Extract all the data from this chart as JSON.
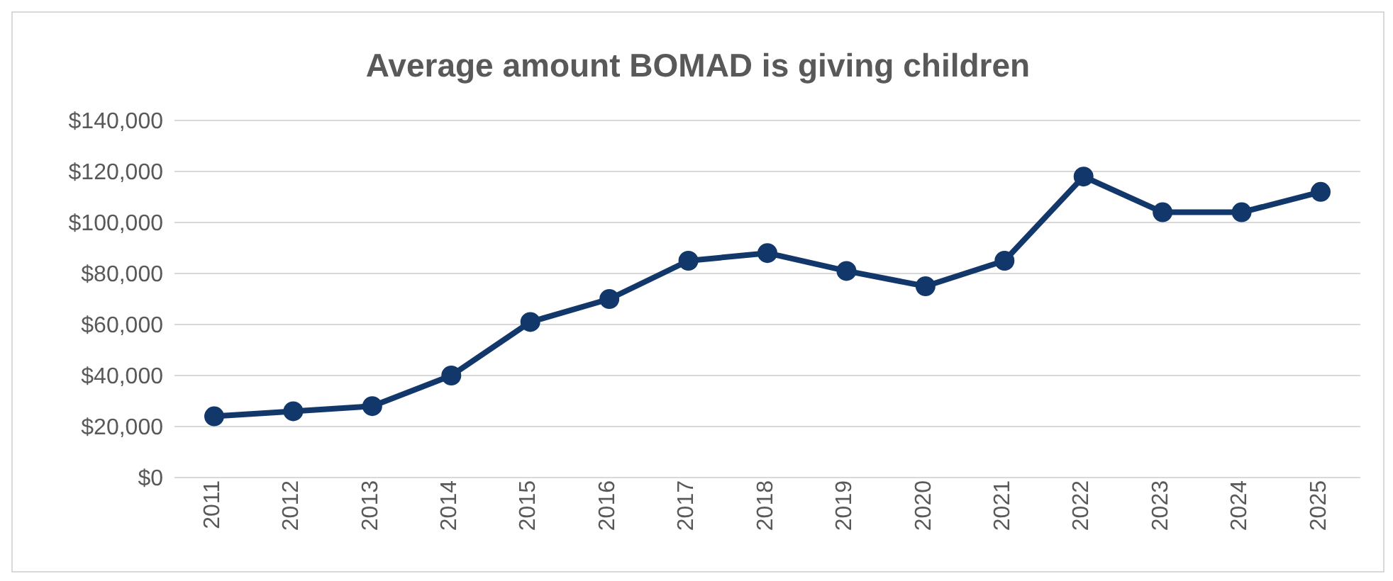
{
  "chart_data": {
    "type": "line",
    "title": "Average amount BOMAD is giving children",
    "categories": [
      "2011",
      "2012",
      "2013",
      "2014",
      "2015",
      "2016",
      "2017",
      "2018",
      "2019",
      "2020",
      "2021",
      "2022",
      "2023",
      "2024",
      "2025"
    ],
    "series": [
      {
        "color": "#12386b",
        "values": [
          24000,
          26000,
          28000,
          40000,
          61000,
          70000,
          85000,
          88000,
          81000,
          75000,
          85000,
          118000,
          104000,
          104000,
          112000
        ]
      }
    ],
    "ylim": [
      0,
      140000
    ],
    "yticks": [
      {
        "value": 0,
        "label": "$0"
      },
      {
        "value": 20000,
        "label": "$20,000"
      },
      {
        "value": 40000,
        "label": "$40,000"
      },
      {
        "value": 60000,
        "label": "$60,000"
      },
      {
        "value": 80000,
        "label": "$80,000"
      },
      {
        "value": 100000,
        "label": "$100,000"
      },
      {
        "value": 120000,
        "label": "$120,000"
      },
      {
        "value": 140000,
        "label": "$140,000"
      }
    ],
    "grid": "y",
    "legend": false,
    "marker": "circle",
    "line_style": "solid"
  }
}
